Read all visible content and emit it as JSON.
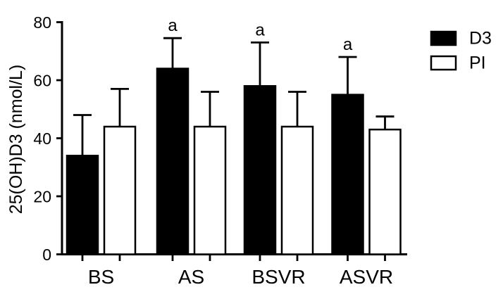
{
  "chart_data": {
    "type": "bar",
    "title": "",
    "xlabel": "",
    "ylabel": "25(OH)D3 (nmol/L)",
    "categories": [
      "BS",
      "AS",
      "BSVR",
      "ASVR"
    ],
    "series": [
      {
        "name": "D3",
        "color": "#000000",
        "values": [
          34,
          64,
          58,
          55
        ],
        "errors": [
          14,
          10.5,
          15,
          13
        ]
      },
      {
        "name": "PI",
        "color": "#ffffff",
        "values": [
          44,
          44,
          44,
          43
        ],
        "errors": [
          13,
          12,
          12,
          4.5
        ]
      }
    ],
    "error_bars": "upper",
    "annotations": [
      {
        "text": "a",
        "category": "AS",
        "series": "D3"
      },
      {
        "text": "a",
        "category": "BSVR",
        "series": "D3"
      },
      {
        "text": "a",
        "category": "ASVR",
        "series": "D3"
      }
    ],
    "ylim": [
      0,
      80
    ],
    "yticks": [
      0,
      20,
      40,
      60,
      80
    ],
    "grid": false,
    "legend_position": "top-right",
    "colors": {
      "axis": "#000000",
      "background": "#ffffff",
      "bar_fill_d3": "#000000",
      "bar_fill_pi": "#ffffff"
    }
  }
}
